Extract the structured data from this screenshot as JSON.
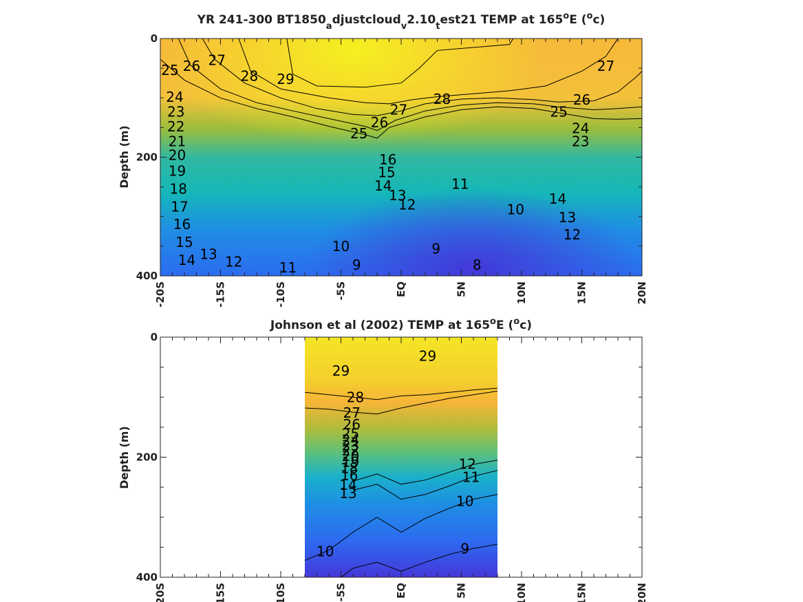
{
  "chart_data": [
    {
      "type": "heatmap",
      "title_prefix": "YR 241-300 BT1850",
      "title_parts": [
        {
          "text": "YR 241-300 BT1850",
          "shift": "none"
        },
        {
          "text": "a",
          "shift": "sub"
        },
        {
          "text": "djustcloud",
          "shift": "none"
        },
        {
          "text": "v",
          "shift": "sub"
        },
        {
          "text": "2.10",
          "shift": "none"
        },
        {
          "text": "t",
          "shift": "sub"
        },
        {
          "text": "est21 TEMP at 165",
          "shift": "none"
        },
        {
          "text": "o",
          "shift": "super"
        },
        {
          "text": "E (",
          "shift": "none"
        },
        {
          "text": "o",
          "shift": "super"
        },
        {
          "text": "c)",
          "shift": "none"
        }
      ],
      "ylabel": "Depth (m)",
      "xlim": [
        -20,
        20
      ],
      "ylim": [
        0,
        400
      ],
      "x_ticks": [
        -20,
        -15,
        -10,
        -5,
        0,
        5,
        10,
        15,
        20
      ],
      "x_tick_labels": [
        "-20S",
        "-15S",
        "-10S",
        "-5S",
        "EQ",
        "5N",
        "10N",
        "15N",
        "20N"
      ],
      "y_ticks": [
        0,
        200,
        400
      ],
      "y_tick_labels": [
        "0",
        "200",
        "400"
      ],
      "colormap": "parula",
      "color_range": [
        8,
        30
      ],
      "data_extent_x": [
        -20,
        20
      ],
      "contour_levels": [
        8,
        9,
        10,
        11,
        12,
        13,
        14,
        15,
        16,
        17,
        18,
        19,
        20,
        21,
        22,
        23,
        24,
        25,
        26,
        27,
        28,
        29
      ],
      "contour_labels": [
        {
          "text": "25",
          "x": -19.2,
          "y": 55
        },
        {
          "text": "26",
          "x": -17.4,
          "y": 48
        },
        {
          "text": "27",
          "x": -15.3,
          "y": 38
        },
        {
          "text": "28",
          "x": -12.6,
          "y": 65
        },
        {
          "text": "29",
          "x": -9.6,
          "y": 70
        },
        {
          "text": "24",
          "x": -18.8,
          "y": 100
        },
        {
          "text": "23",
          "x": -18.7,
          "y": 125
        },
        {
          "text": "22",
          "x": -18.7,
          "y": 150
        },
        {
          "text": "21",
          "x": -18.6,
          "y": 175
        },
        {
          "text": "20",
          "x": -18.6,
          "y": 198
        },
        {
          "text": "19",
          "x": -18.6,
          "y": 225
        },
        {
          "text": "18",
          "x": -18.5,
          "y": 255
        },
        {
          "text": "17",
          "x": -18.4,
          "y": 285
        },
        {
          "text": "16",
          "x": -18.2,
          "y": 315
        },
        {
          "text": "15",
          "x": -18.0,
          "y": 345
        },
        {
          "text": "14",
          "x": -17.8,
          "y": 375
        },
        {
          "text": "13",
          "x": -16.0,
          "y": 365
        },
        {
          "text": "12",
          "x": -13.9,
          "y": 378
        },
        {
          "text": "11",
          "x": -9.4,
          "y": 388
        },
        {
          "text": "10",
          "x": -5.0,
          "y": 352
        },
        {
          "text": "9",
          "x": -3.7,
          "y": 383
        },
        {
          "text": "8",
          "x": 6.3,
          "y": 383
        },
        {
          "text": "9",
          "x": 2.9,
          "y": 356
        },
        {
          "text": "10",
          "x": 9.5,
          "y": 290
        },
        {
          "text": "11",
          "x": 4.9,
          "y": 247
        },
        {
          "text": "12",
          "x": 0.5,
          "y": 282
        },
        {
          "text": "13",
          "x": -0.3,
          "y": 266
        },
        {
          "text": "14",
          "x": -1.5,
          "y": 250
        },
        {
          "text": "15",
          "x": -1.2,
          "y": 227
        },
        {
          "text": "16",
          "x": -1.1,
          "y": 206
        },
        {
          "text": "25",
          "x": -3.5,
          "y": 162
        },
        {
          "text": "26",
          "x": -1.8,
          "y": 143
        },
        {
          "text": "27",
          "x": -0.2,
          "y": 122
        },
        {
          "text": "28",
          "x": 3.4,
          "y": 104
        },
        {
          "text": "25",
          "x": 13.1,
          "y": 125
        },
        {
          "text": "26",
          "x": 15.0,
          "y": 105
        },
        {
          "text": "27",
          "x": 17.0,
          "y": 48
        },
        {
          "text": "24",
          "x": 14.9,
          "y": 153
        },
        {
          "text": "23",
          "x": 14.9,
          "y": 175
        },
        {
          "text": "12",
          "x": 14.2,
          "y": 332
        },
        {
          "text": "13",
          "x": 13.8,
          "y": 303
        },
        {
          "text": "14",
          "x": 13.0,
          "y": 272
        }
      ],
      "contour_lines": [
        {
          "level": 29,
          "points": [
            [
              -9.5,
              0
            ],
            [
              -9.0,
              60
            ],
            [
              -7,
              80
            ],
            [
              -3,
              82
            ],
            [
              0,
              75
            ],
            [
              1.5,
              50
            ],
            [
              3,
              20
            ],
            [
              9,
              10
            ],
            [
              9.3,
              0
            ]
          ]
        },
        {
          "level": 28,
          "points": [
            [
              -13.5,
              0
            ],
            [
              -12.5,
              55
            ],
            [
              -10,
              85
            ],
            [
              -6,
              100
            ],
            [
              -3,
              108
            ],
            [
              -1,
              110
            ],
            [
              1,
              103
            ],
            [
              3,
              98
            ],
            [
              6,
              93
            ],
            [
              9,
              88
            ],
            [
              12,
              80
            ],
            [
              15,
              55
            ],
            [
              17,
              30
            ],
            [
              18,
              0
            ]
          ]
        },
        {
          "level": 27,
          "points": [
            [
              -16.5,
              0
            ],
            [
              -15.5,
              35
            ],
            [
              -13,
              75
            ],
            [
              -10,
              100
            ],
            [
              -7,
              118
            ],
            [
              -4,
              128
            ],
            [
              -2,
              130
            ],
            [
              0,
              122
            ],
            [
              2,
              110
            ],
            [
              5,
              102
            ],
            [
              8,
              100
            ],
            [
              11,
              103
            ],
            [
              13,
              107
            ],
            [
              16,
              105
            ],
            [
              18,
              90
            ],
            [
              19.5,
              65
            ],
            [
              20,
              55
            ]
          ]
        },
        {
          "level": 26,
          "points": [
            [
              -18.5,
              0
            ],
            [
              -17.5,
              45
            ],
            [
              -15,
              85
            ],
            [
              -12,
              108
            ],
            [
              -9,
              122
            ],
            [
              -6,
              135
            ],
            [
              -3,
              148
            ],
            [
              -2,
              155
            ],
            [
              -0.5,
              138
            ],
            [
              2,
              122
            ],
            [
              5,
              112
            ],
            [
              8,
              108
            ],
            [
              11,
              110
            ],
            [
              13,
              115
            ],
            [
              16,
              120
            ],
            [
              18,
              118
            ],
            [
              20,
              115
            ]
          ]
        },
        {
          "level": 25,
          "points": [
            [
              -20,
              35
            ],
            [
              -18,
              70
            ],
            [
              -15,
              100
            ],
            [
              -12,
              118
            ],
            [
              -9,
              132
            ],
            [
              -6,
              148
            ],
            [
              -3,
              162
            ],
            [
              -2,
              168
            ],
            [
              -1,
              150
            ],
            [
              2,
              132
            ],
            [
              5,
              120
            ],
            [
              8,
              115
            ],
            [
              11,
              118
            ],
            [
              13,
              125
            ],
            [
              16,
              135
            ],
            [
              18,
              136
            ],
            [
              20,
              135
            ]
          ]
        }
      ]
    },
    {
      "type": "heatmap",
      "title_parts": [
        {
          "text": "Johnson et al (2002) TEMP at 165",
          "shift": "none"
        },
        {
          "text": "o",
          "shift": "super"
        },
        {
          "text": "E (",
          "shift": "none"
        },
        {
          "text": "o",
          "shift": "super"
        },
        {
          "text": "c)",
          "shift": "none"
        }
      ],
      "ylabel": "Depth (m)",
      "xlim": [
        -20,
        20
      ],
      "ylim": [
        0,
        400
      ],
      "x_ticks": [
        -20,
        -15,
        -10,
        -5,
        0,
        5,
        10,
        15,
        20
      ],
      "x_tick_labels": [
        "-20S",
        "-15S",
        "-10S",
        "-5S",
        "EQ",
        "5N",
        "10N",
        "15N",
        "20N"
      ],
      "y_ticks": [
        0,
        200,
        400
      ],
      "y_tick_labels": [
        "0",
        "200",
        "400"
      ],
      "colormap": "parula",
      "color_range": [
        8,
        30
      ],
      "data_extent_x": [
        -8,
        8
      ],
      "contour_levels": [
        9,
        10,
        11,
        12,
        13,
        14,
        15,
        16,
        17,
        18,
        19,
        20,
        21,
        22,
        23,
        24,
        25,
        26,
        27,
        28,
        29
      ],
      "contour_labels": [
        {
          "text": "29",
          "x": -5.0,
          "y": 58
        },
        {
          "text": "29",
          "x": 2.2,
          "y": 33
        },
        {
          "text": "28",
          "x": -3.8,
          "y": 102
        },
        {
          "text": "27",
          "x": -4.1,
          "y": 128
        },
        {
          "text": "26",
          "x": -4.1,
          "y": 147
        },
        {
          "text": "25",
          "x": -4.2,
          "y": 163
        },
        {
          "text": "24",
          "x": -4.2,
          "y": 173
        },
        {
          "text": "23",
          "x": -4.2,
          "y": 182
        },
        {
          "text": "22",
          "x": -4.2,
          "y": 191
        },
        {
          "text": "20",
          "x": -4.2,
          "y": 200
        },
        {
          "text": "19",
          "x": -4.2,
          "y": 210
        },
        {
          "text": "18",
          "x": -4.3,
          "y": 220
        },
        {
          "text": "16",
          "x": -4.3,
          "y": 232
        },
        {
          "text": "14",
          "x": -4.4,
          "y": 248
        },
        {
          "text": "13",
          "x": -4.4,
          "y": 262
        },
        {
          "text": "12",
          "x": 5.5,
          "y": 213
        },
        {
          "text": "11",
          "x": 5.8,
          "y": 235
        },
        {
          "text": "10",
          "x": 5.3,
          "y": 275
        },
        {
          "text": "10",
          "x": -6.3,
          "y": 359
        },
        {
          "text": "9",
          "x": 5.3,
          "y": 354
        }
      ],
      "contour_lines": [
        {
          "level": 28,
          "points": [
            [
              -8,
              92
            ],
            [
              -6,
              96
            ],
            [
              -4,
              100
            ],
            [
              -2,
              104
            ],
            [
              0,
              98
            ],
            [
              2,
              96
            ],
            [
              4,
              92
            ],
            [
              6,
              88
            ],
            [
              8,
              85
            ]
          ]
        },
        {
          "level": 27,
          "points": [
            [
              -8,
              118
            ],
            [
              -6,
              120
            ],
            [
              -4,
              125
            ],
            [
              -2,
              128
            ],
            [
              0,
              118
            ],
            [
              2,
              110
            ],
            [
              4,
              102
            ],
            [
              6,
              96
            ],
            [
              8,
              90
            ]
          ]
        },
        {
          "level": 12,
          "points": [
            [
              -4,
              240
            ],
            [
              -2,
              228
            ],
            [
              0,
              245
            ],
            [
              2,
              238
            ],
            [
              4,
              225
            ],
            [
              6,
              212
            ],
            [
              8,
              205
            ]
          ]
        },
        {
          "level": 11,
          "points": [
            [
              -4,
              255
            ],
            [
              -2,
              245
            ],
            [
              0,
              270
            ],
            [
              2,
              262
            ],
            [
              4,
              248
            ],
            [
              6,
              232
            ],
            [
              8,
              222
            ]
          ]
        },
        {
          "level": 10,
          "points": [
            [
              -8,
              372
            ],
            [
              -6,
              355
            ],
            [
              -4,
              325
            ],
            [
              -2,
              300
            ],
            [
              0,
              325
            ],
            [
              2,
              302
            ],
            [
              4,
              285
            ],
            [
              6,
              270
            ],
            [
              8,
              262
            ]
          ]
        },
        {
          "level": 9,
          "points": [
            [
              -5,
              400
            ],
            [
              -4,
              385
            ],
            [
              -2,
              375
            ],
            [
              0,
              390
            ],
            [
              2,
              375
            ],
            [
              4,
              362
            ],
            [
              6,
              352
            ],
            [
              8,
              345
            ]
          ]
        }
      ]
    }
  ]
}
